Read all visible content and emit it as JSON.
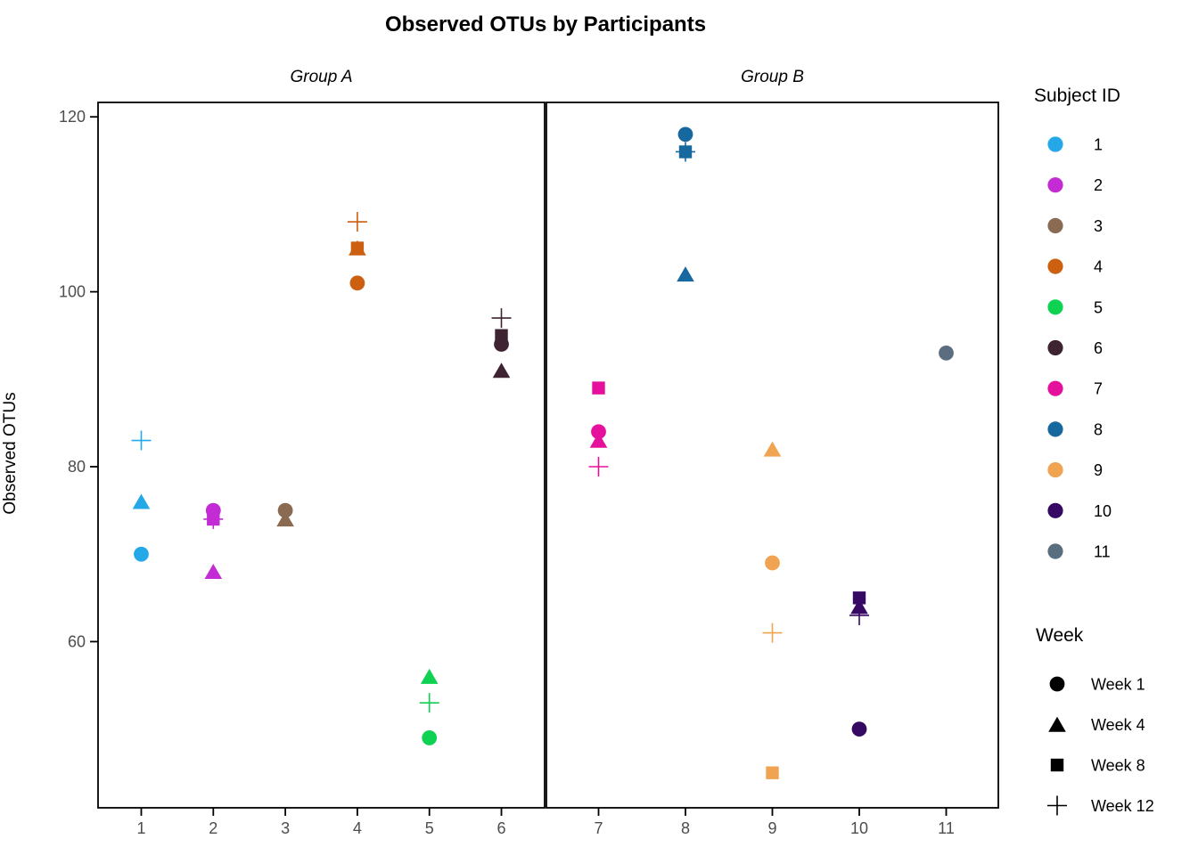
{
  "chart_data": {
    "type": "scatter",
    "title": "Observed OTUs by Participants",
    "ylabel": "Observed OTUs",
    "ylim": [
      41.0,
      121.65
    ],
    "yticks": [
      60,
      80,
      100,
      120
    ],
    "grid": "off",
    "legend_position": "right",
    "legend_subject_title": "Subject ID",
    "legend_week_title": "Week",
    "facets": [
      {
        "label": "Group A",
        "xticks": [
          1,
          2,
          3,
          4,
          5,
          6
        ],
        "xlim": [
          0.4,
          6.6
        ]
      },
      {
        "label": "Group B",
        "xticks": [
          7,
          8,
          9,
          10,
          11
        ],
        "xlim": [
          6.4,
          11.6
        ]
      }
    ],
    "weeks": [
      {
        "name": "Week 1",
        "shape": "circle"
      },
      {
        "name": "Week 4",
        "shape": "triangle"
      },
      {
        "name": "Week 8",
        "shape": "square"
      },
      {
        "name": "Week 12",
        "shape": "plus"
      }
    ],
    "subjects": [
      {
        "id": 1,
        "color": "#24A8E8"
      },
      {
        "id": 2,
        "color": "#C32BD4"
      },
      {
        "id": 3,
        "color": "#8B6A52"
      },
      {
        "id": 4,
        "color": "#CC5F10"
      },
      {
        "id": 5,
        "color": "#0FD152"
      },
      {
        "id": 6,
        "color": "#3E2432"
      },
      {
        "id": 7,
        "color": "#E5109C"
      },
      {
        "id": 8,
        "color": "#17689E"
      },
      {
        "id": 9,
        "color": "#F0A351"
      },
      {
        "id": 10,
        "color": "#360A62"
      },
      {
        "id": 11,
        "color": "#5A6E80"
      }
    ],
    "points": [
      {
        "subject": 1,
        "facet": 0,
        "x": 1,
        "week": "Week 1",
        "shape": "circle",
        "value": 70
      },
      {
        "subject": 1,
        "facet": 0,
        "x": 1,
        "week": "Week 4",
        "shape": "triangle",
        "value": 76
      },
      {
        "subject": 1,
        "facet": 0,
        "x": 1,
        "week": "Week 12",
        "shape": "plus",
        "value": 83
      },
      {
        "subject": 2,
        "facet": 0,
        "x": 2,
        "week": "Week 1",
        "shape": "circle",
        "value": 75
      },
      {
        "subject": 2,
        "facet": 0,
        "x": 2,
        "week": "Week 4",
        "shape": "triangle",
        "value": 68
      },
      {
        "subject": 2,
        "facet": 0,
        "x": 2,
        "week": "Week 8",
        "shape": "square",
        "value": 74
      },
      {
        "subject": 2,
        "facet": 0,
        "x": 2,
        "week": "Week 12",
        "shape": "plus",
        "value": 74
      },
      {
        "subject": 3,
        "facet": 0,
        "x": 3,
        "week": "Week 1",
        "shape": "circle",
        "value": 75
      },
      {
        "subject": 3,
        "facet": 0,
        "x": 3,
        "week": "Week 4",
        "shape": "triangle",
        "value": 74
      },
      {
        "subject": 4,
        "facet": 0,
        "x": 4,
        "week": "Week 1",
        "shape": "circle",
        "value": 101
      },
      {
        "subject": 4,
        "facet": 0,
        "x": 4,
        "week": "Week 4",
        "shape": "triangle",
        "value": 105
      },
      {
        "subject": 4,
        "facet": 0,
        "x": 4,
        "week": "Week 8",
        "shape": "square",
        "value": 105
      },
      {
        "subject": 4,
        "facet": 0,
        "x": 4,
        "week": "Week 12",
        "shape": "plus",
        "value": 108
      },
      {
        "subject": 5,
        "facet": 0,
        "x": 5,
        "week": "Week 1",
        "shape": "circle",
        "value": 49
      },
      {
        "subject": 5,
        "facet": 0,
        "x": 5,
        "week": "Week 4",
        "shape": "triangle",
        "value": 56
      },
      {
        "subject": 5,
        "facet": 0,
        "x": 5,
        "week": "Week 12",
        "shape": "plus",
        "value": 53
      },
      {
        "subject": 6,
        "facet": 0,
        "x": 6,
        "week": "Week 1",
        "shape": "circle",
        "value": 94
      },
      {
        "subject": 6,
        "facet": 0,
        "x": 6,
        "week": "Week 4",
        "shape": "triangle",
        "value": 91
      },
      {
        "subject": 6,
        "facet": 0,
        "x": 6,
        "week": "Week 8",
        "shape": "square",
        "value": 95
      },
      {
        "subject": 6,
        "facet": 0,
        "x": 6,
        "week": "Week 12",
        "shape": "plus",
        "value": 97
      },
      {
        "subject": 7,
        "facet": 1,
        "x": 7,
        "week": "Week 1",
        "shape": "circle",
        "value": 84
      },
      {
        "subject": 7,
        "facet": 1,
        "x": 7,
        "week": "Week 4",
        "shape": "triangle",
        "value": 83
      },
      {
        "subject": 7,
        "facet": 1,
        "x": 7,
        "week": "Week 8",
        "shape": "square",
        "value": 89
      },
      {
        "subject": 7,
        "facet": 1,
        "x": 7,
        "week": "Week 12",
        "shape": "plus",
        "value": 80
      },
      {
        "subject": 8,
        "facet": 1,
        "x": 8,
        "week": "Week 1",
        "shape": "circle",
        "value": 118
      },
      {
        "subject": 8,
        "facet": 1,
        "x": 8,
        "week": "Week 4",
        "shape": "triangle",
        "value": 102
      },
      {
        "subject": 8,
        "facet": 1,
        "x": 8,
        "week": "Week 8",
        "shape": "square",
        "value": 116
      },
      {
        "subject": 8,
        "facet": 1,
        "x": 8,
        "week": "Week 12",
        "shape": "plus",
        "value": 116
      },
      {
        "subject": 9,
        "facet": 1,
        "x": 9,
        "week": "Week 1",
        "shape": "circle",
        "value": 69
      },
      {
        "subject": 9,
        "facet": 1,
        "x": 9,
        "week": "Week 4",
        "shape": "triangle",
        "value": 82
      },
      {
        "subject": 9,
        "facet": 1,
        "x": 9,
        "week": "Week 8",
        "shape": "square",
        "value": 45
      },
      {
        "subject": 9,
        "facet": 1,
        "x": 9,
        "week": "Week 12",
        "shape": "plus",
        "value": 61
      },
      {
        "subject": 10,
        "facet": 1,
        "x": 10,
        "week": "Week 1",
        "shape": "circle",
        "value": 50
      },
      {
        "subject": 10,
        "facet": 1,
        "x": 10,
        "week": "Week 4",
        "shape": "triangle",
        "value": 64
      },
      {
        "subject": 10,
        "facet": 1,
        "x": 10,
        "week": "Week 8",
        "shape": "square",
        "value": 65
      },
      {
        "subject": 10,
        "facet": 1,
        "x": 10,
        "week": "Week 12",
        "shape": "plus",
        "value": 63
      },
      {
        "subject": 11,
        "facet": 1,
        "x": 11,
        "week": "Week 1",
        "shape": "circle",
        "value": 93
      }
    ],
    "colors": {
      "axis_text": "#4D4D4D",
      "axis_line": "#000000",
      "text": "#000000"
    }
  }
}
